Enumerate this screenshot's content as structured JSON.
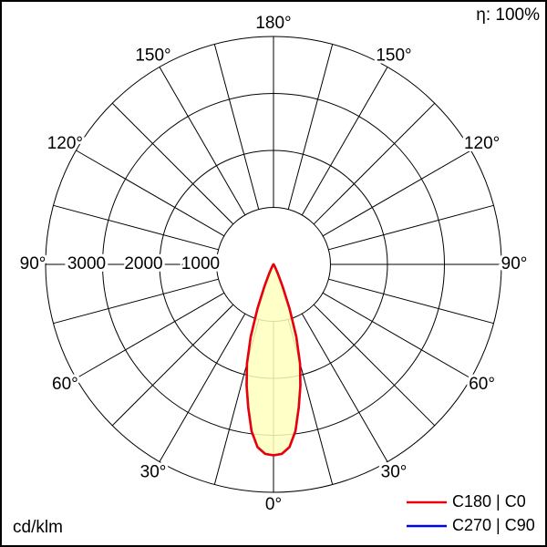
{
  "header": {
    "efficiency": "η: 100%"
  },
  "footer": {
    "unit": "cd/klm"
  },
  "legend": {
    "items": [
      {
        "label": "C180 | C0",
        "color": "#e8000a"
      },
      {
        "label": "C270 | C90",
        "color": "#0008c8"
      }
    ]
  },
  "chart_data": {
    "type": "line",
    "projection": "polar",
    "unit": "cd/klm",
    "efficiency": "100%",
    "angle_labels": [
      "0°",
      "30°",
      "60°",
      "90°",
      "120°",
      "150°",
      "180°"
    ],
    "angle_step_deg": 15,
    "ring_values": [
      1000,
      2000,
      3000,
      4000
    ],
    "ring_labels": [
      "3000",
      "2000",
      "1000"
    ],
    "r_max": 4000,
    "grid": "on",
    "legend_position": "bottom-right",
    "series": [
      {
        "name": "C180 | C0",
        "color": "#e8000a",
        "fill": "#ffffbe",
        "gamma_deg": [
          0,
          2.5,
          5,
          7.5,
          10,
          12.5,
          15,
          17.5,
          20,
          22.5,
          25,
          27.5,
          30,
          35,
          40,
          45,
          60,
          75,
          90
        ],
        "values_cd_klm": [
          3350,
          3330,
          3220,
          2950,
          2550,
          2180,
          1800,
          1330,
          820,
          420,
          180,
          90,
          50,
          25,
          15,
          10,
          5,
          2,
          0
        ]
      },
      {
        "name": "C270 | C90",
        "color": "#0008c8",
        "fill": "none",
        "gamma_deg": [
          0,
          2.5,
          5,
          7.5,
          10,
          12.5,
          15,
          17.5,
          20,
          22.5,
          25,
          27.5,
          30,
          35,
          40,
          45,
          60,
          75,
          90
        ],
        "values_cd_klm": [
          3350,
          3330,
          3220,
          2950,
          2550,
          2180,
          1800,
          1330,
          820,
          420,
          180,
          90,
          50,
          25,
          15,
          10,
          5,
          2,
          0
        ]
      }
    ]
  }
}
